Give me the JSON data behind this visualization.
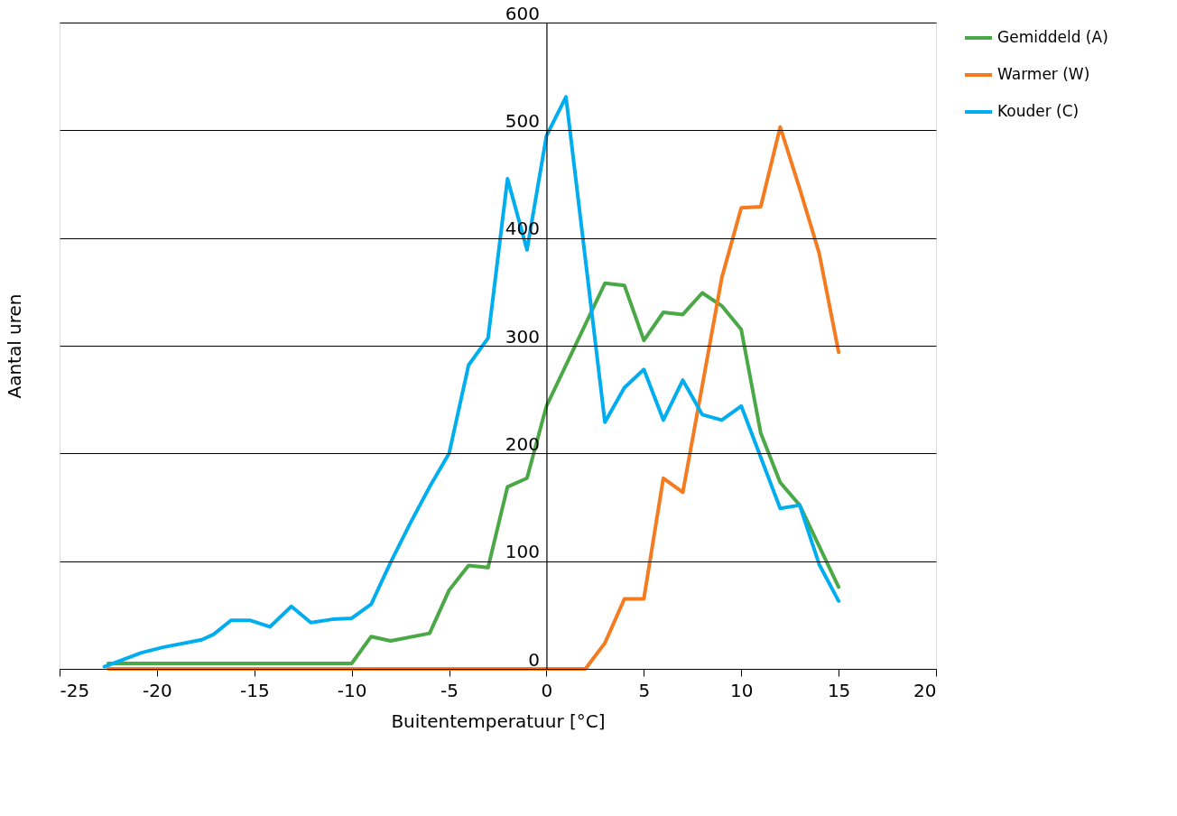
{
  "chart_data": {
    "type": "line",
    "xlabel": "Buitentemperatuur [°C]",
    "ylabel": "Aantal uren",
    "xlim": [
      -25,
      20
    ],
    "xticks": [
      -25,
      -20,
      -15,
      -10,
      -5,
      0,
      5,
      10,
      15,
      20
    ],
    "ylim": [
      0,
      600
    ],
    "yticks": [
      0,
      100,
      200,
      300,
      400,
      500,
      600
    ],
    "grid": "y",
    "legend": "top right",
    "marker": "none",
    "line_style": "solid",
    "series": [
      {
        "name": "Gemiddeld (A)",
        "color": "#4aa846",
        "x": [
          -22.5,
          -10,
          -9,
          -8,
          -6,
          -5,
          -4,
          -3,
          -2,
          -1,
          0,
          3,
          4,
          5,
          6,
          7,
          8,
          9,
          10,
          11,
          12,
          13,
          15
        ],
        "values": [
          5,
          5,
          30,
          26,
          33,
          73,
          96,
          94,
          169,
          177,
          244,
          358,
          356,
          305,
          331,
          329,
          349,
          337,
          315,
          219,
          173,
          152,
          76
        ]
      },
      {
        "name": "Warmer (W)",
        "color": "#f47b20",
        "x": [
          -22.5,
          2,
          3,
          4,
          5,
          6,
          7,
          8,
          9,
          10,
          11,
          12,
          13,
          14,
          15
        ],
        "values": [
          0,
          0,
          24,
          65,
          65,
          177,
          164,
          263,
          363,
          428,
          429,
          503,
          446,
          386,
          294
        ]
      },
      {
        "name": "Kouder (C)",
        "color": "#00aeef",
        "x": [
          -22.7,
          -20.8,
          -19.7,
          -17.7,
          -17.1,
          -16.2,
          -15.2,
          -14.2,
          -13.1,
          -12.1,
          -11,
          -10,
          -9,
          -8,
          -7,
          -6,
          -5,
          -4,
          -3,
          -2,
          -1,
          0,
          1,
          3,
          4,
          5,
          6,
          7,
          8,
          9,
          10,
          12,
          13,
          14,
          15
        ],
        "values": [
          2,
          15,
          20,
          27,
          32,
          45,
          45,
          39,
          58,
          43,
          46,
          47,
          60,
          99,
          135,
          169,
          200,
          282,
          307,
          455,
          389,
          495,
          531,
          229,
          261,
          278,
          231,
          268,
          236,
          231,
          244,
          149,
          152,
          97,
          63
        ]
      }
    ]
  }
}
